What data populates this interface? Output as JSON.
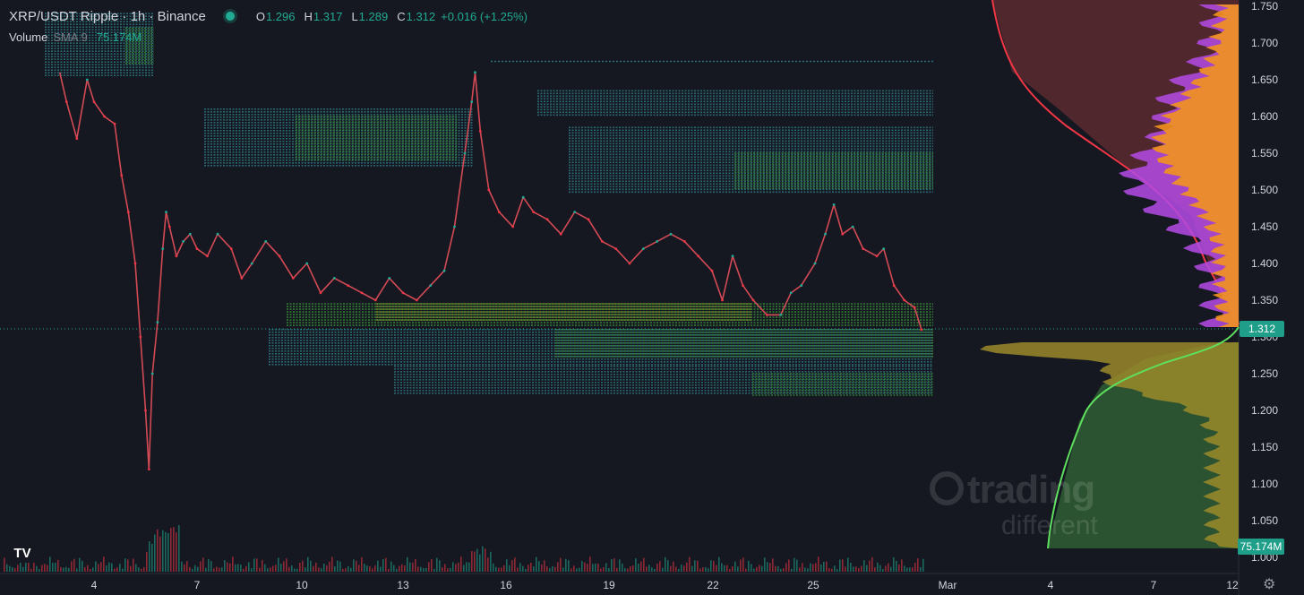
{
  "header": {
    "symbol": "XRP/USDT Ripple · 1h · Binance",
    "open_label": "O",
    "open": "1.296",
    "high_label": "H",
    "high": "1.317",
    "low_label": "L",
    "low": "1.289",
    "close_label": "C",
    "close": "1.312",
    "change": "+0.016 (+1.25%)"
  },
  "volume": {
    "label": "Volume",
    "sma": "SMA 9",
    "value": "75.174M"
  },
  "watermark": {
    "line1": "trading",
    "line2": "different"
  },
  "logo": "TV",
  "price_tag": {
    "last": "1.312",
    "volume": "75.174M"
  },
  "colors": {
    "up": "#22ab94",
    "down": "#f23645",
    "background": "#151821"
  },
  "chart_data": {
    "type": "line",
    "title": "XRP/USDT Ripple · 1h · Binance",
    "ylim": [
      1.0,
      1.75
    ],
    "y_ticks": [
      "1.750",
      "1.700",
      "1.650",
      "1.600",
      "1.550",
      "1.500",
      "1.450",
      "1.400",
      "1.350",
      "1.300",
      "1.250",
      "1.200",
      "1.150",
      "1.100",
      "1.050",
      "1.000"
    ],
    "x_ticks": [
      "4",
      "7",
      "10",
      "13",
      "16",
      "19",
      "22",
      "25",
      "Mar",
      "4",
      "7",
      "12"
    ],
    "series": [
      {
        "values": [
          [
            3.0,
            1.66
          ],
          [
            3.2,
            1.62
          ],
          [
            3.5,
            1.57
          ],
          [
            3.8,
            1.65
          ],
          [
            4.0,
            1.62
          ],
          [
            4.3,
            1.6
          ],
          [
            4.6,
            1.59
          ],
          [
            4.8,
            1.52
          ],
          [
            5.0,
            1.47
          ],
          [
            5.2,
            1.4
          ],
          [
            5.35,
            1.3
          ],
          [
            5.5,
            1.2
          ],
          [
            5.6,
            1.12
          ],
          [
            5.7,
            1.25
          ],
          [
            5.85,
            1.32
          ],
          [
            6.0,
            1.42
          ],
          [
            6.1,
            1.47
          ],
          [
            6.2,
            1.45
          ],
          [
            6.4,
            1.41
          ],
          [
            6.6,
            1.43
          ],
          [
            6.8,
            1.44
          ],
          [
            7.0,
            1.42
          ],
          [
            7.3,
            1.41
          ],
          [
            7.6,
            1.44
          ],
          [
            8.0,
            1.42
          ],
          [
            8.3,
            1.38
          ],
          [
            8.6,
            1.4
          ],
          [
            9.0,
            1.43
          ],
          [
            9.4,
            1.41
          ],
          [
            9.8,
            1.38
          ],
          [
            10.2,
            1.4
          ],
          [
            10.6,
            1.36
          ],
          [
            11.0,
            1.38
          ],
          [
            11.4,
            1.37
          ],
          [
            11.8,
            1.36
          ],
          [
            12.2,
            1.35
          ],
          [
            12.6,
            1.38
          ],
          [
            13.0,
            1.36
          ],
          [
            13.4,
            1.35
          ],
          [
            13.8,
            1.37
          ],
          [
            14.2,
            1.39
          ],
          [
            14.5,
            1.45
          ],
          [
            14.8,
            1.55
          ],
          [
            15.0,
            1.62
          ],
          [
            15.1,
            1.66
          ],
          [
            15.25,
            1.58
          ],
          [
            15.5,
            1.5
          ],
          [
            15.8,
            1.47
          ],
          [
            16.2,
            1.45
          ],
          [
            16.5,
            1.49
          ],
          [
            16.8,
            1.47
          ],
          [
            17.2,
            1.46
          ],
          [
            17.6,
            1.44
          ],
          [
            18.0,
            1.47
          ],
          [
            18.4,
            1.46
          ],
          [
            18.8,
            1.43
          ],
          [
            19.2,
            1.42
          ],
          [
            19.6,
            1.4
          ],
          [
            20.0,
            1.42
          ],
          [
            20.4,
            1.43
          ],
          [
            20.8,
            1.44
          ],
          [
            21.2,
            1.43
          ],
          [
            21.6,
            1.41
          ],
          [
            22.0,
            1.39
          ],
          [
            22.3,
            1.35
          ],
          [
            22.6,
            1.41
          ],
          [
            22.9,
            1.37
          ],
          [
            23.2,
            1.35
          ],
          [
            23.6,
            1.33
          ],
          [
            24.0,
            1.33
          ],
          [
            24.3,
            1.36
          ],
          [
            24.6,
            1.37
          ],
          [
            25.0,
            1.4
          ],
          [
            25.3,
            1.44
          ],
          [
            25.55,
            1.48
          ],
          [
            25.8,
            1.44
          ],
          [
            26.1,
            1.45
          ],
          [
            26.4,
            1.42
          ],
          [
            26.8,
            1.41
          ],
          [
            27.0,
            1.42
          ],
          [
            27.3,
            1.37
          ],
          [
            27.6,
            1.35
          ],
          [
            27.9,
            1.34
          ],
          [
            28.1,
            1.31
          ]
        ]
      }
    ]
  }
}
